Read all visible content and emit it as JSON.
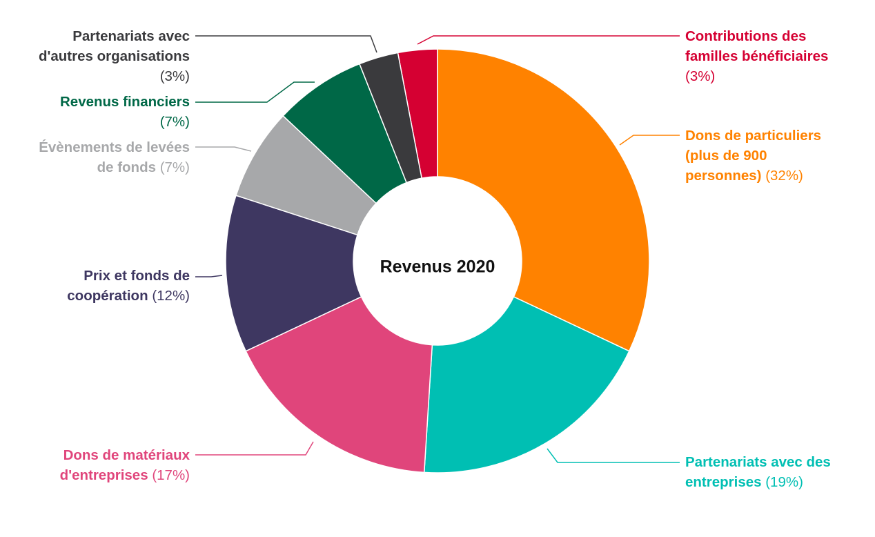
{
  "chart_data": {
    "type": "pie",
    "donut": true,
    "center_title": "Revenus 2020",
    "slices": [
      {
        "lines": [
          "Contributions des",
          "familles bénéficiaires"
        ],
        "pct_label": "(3%)",
        "value": 3,
        "color": "#d50032"
      },
      {
        "lines": [
          "Dons de particuliers",
          "(plus de 900",
          "personnes)"
        ],
        "pct_label": "(32%)",
        "value": 32,
        "color": "#ff8200"
      },
      {
        "lines": [
          "Partenariats avec des",
          "entreprises"
        ],
        "pct_label": "(19%)",
        "value": 19,
        "color": "#00bfb3"
      },
      {
        "lines": [
          "Dons de matériaux",
          "d'entreprises"
        ],
        "pct_label": "(17%)",
        "value": 17,
        "color": "#e0457b"
      },
      {
        "lines": [
          "Prix et fonds de",
          "coopération"
        ],
        "pct_label": "(12%)",
        "value": 12,
        "color": "#3e3761"
      },
      {
        "lines": [
          "Évènements de levées",
          "de fonds"
        ],
        "pct_label": "(7%)",
        "value": 7,
        "color": "#a7a8aa"
      },
      {
        "lines": [
          "Revenus financiers"
        ],
        "pct_label": "(7%)",
        "value": 7,
        "color": "#006847"
      },
      {
        "lines": [
          "Partenariats avec",
          "d'autres organisations"
        ],
        "pct_label": "(3%)",
        "value": 3,
        "color": "#3a3a3d"
      }
    ]
  }
}
